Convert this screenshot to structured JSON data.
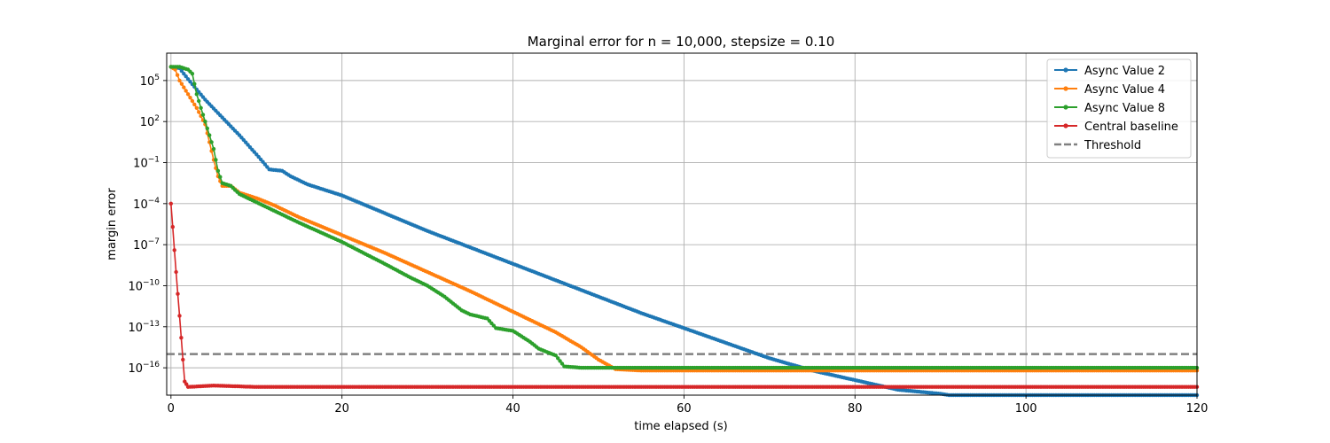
{
  "chart_data": {
    "type": "line",
    "title": "Marginal error for n = 10,000, stepsize = 0.10",
    "xlabel": "time elapsed (s)",
    "ylabel": "margin error",
    "xlim": [
      -0.5,
      120
    ],
    "ylim_log10": [
      -18,
      7
    ],
    "y_scale": "log",
    "grid": true,
    "legend_position": "top-right",
    "x_ticks": [
      0,
      20,
      40,
      60,
      80,
      100,
      120
    ],
    "x_tick_labels": [
      "0",
      "20",
      "40",
      "60",
      "80",
      "100",
      "120"
    ],
    "y_ticks_log10": [
      -16,
      -13,
      -10,
      -7,
      -4,
      -1,
      2,
      5
    ],
    "y_tick_labels": [
      {
        "base": "10",
        "exp": "−16"
      },
      {
        "base": "10",
        "exp": "−13"
      },
      {
        "base": "10",
        "exp": "−10"
      },
      {
        "base": "10",
        "exp": "−7"
      },
      {
        "base": "10",
        "exp": "−4"
      },
      {
        "base": "10",
        "exp": "−1"
      },
      {
        "base": "10",
        "exp": "2"
      },
      {
        "base": "10",
        "exp": "5"
      }
    ],
    "series": [
      {
        "name": "Async Value 2",
        "color": "#1f77b4",
        "marker": "dot",
        "points": [
          [
            0,
            6.0
          ],
          [
            1,
            5.9
          ],
          [
            2,
            5.1
          ],
          [
            4,
            3.6
          ],
          [
            6,
            2.3
          ],
          [
            8,
            1.0
          ],
          [
            10,
            -0.4
          ],
          [
            11.5,
            -1.5
          ],
          [
            13,
            -1.6
          ],
          [
            14,
            -2.0
          ],
          [
            16,
            -2.6
          ],
          [
            20,
            -3.4
          ],
          [
            25,
            -4.7
          ],
          [
            30,
            -6.0
          ],
          [
            35,
            -7.2
          ],
          [
            40,
            -8.4
          ],
          [
            45,
            -9.6
          ],
          [
            50,
            -10.8
          ],
          [
            55,
            -12.0
          ],
          [
            60,
            -13.1
          ],
          [
            65,
            -14.2
          ],
          [
            70,
            -15.3
          ],
          [
            75,
            -16.2
          ],
          [
            80,
            -16.9
          ],
          [
            85,
            -17.6
          ],
          [
            90,
            -17.9
          ],
          [
            91,
            -18.0
          ],
          [
            100,
            -18.0
          ],
          [
            120,
            -18.0
          ]
        ]
      },
      {
        "name": "Async Value 4",
        "color": "#ff7f0e",
        "marker": "dot",
        "points": [
          [
            0,
            6.0
          ],
          [
            0.5,
            5.8
          ],
          [
            1,
            5.0
          ],
          [
            2,
            4.0
          ],
          [
            3,
            3.0
          ],
          [
            4,
            1.8
          ],
          [
            5,
            -0.8
          ],
          [
            5.5,
            -2.0
          ],
          [
            6,
            -2.7
          ],
          [
            7,
            -2.7
          ],
          [
            8,
            -3.2
          ],
          [
            10,
            -3.6
          ],
          [
            12,
            -4.1
          ],
          [
            15,
            -5.0
          ],
          [
            20,
            -6.3
          ],
          [
            25,
            -7.6
          ],
          [
            30,
            -9.0
          ],
          [
            35,
            -10.4
          ],
          [
            40,
            -11.9
          ],
          [
            45,
            -13.4
          ],
          [
            48,
            -14.5
          ],
          [
            50,
            -15.4
          ],
          [
            52,
            -16.1
          ],
          [
            55,
            -16.2
          ],
          [
            60,
            -16.2
          ],
          [
            80,
            -16.2
          ],
          [
            100,
            -16.2
          ],
          [
            120,
            -16.2
          ]
        ]
      },
      {
        "name": "Async Value 8",
        "color": "#2ca02c",
        "marker": "dot",
        "points": [
          [
            0,
            6.0
          ],
          [
            1,
            6.0
          ],
          [
            2,
            5.8
          ],
          [
            2.5,
            5.5
          ],
          [
            3,
            4.0
          ],
          [
            4,
            2.0
          ],
          [
            5,
            0.0
          ],
          [
            5.5,
            -1.6
          ],
          [
            6,
            -2.5
          ],
          [
            7,
            -2.7
          ],
          [
            8,
            -3.3
          ],
          [
            10,
            -3.9
          ],
          [
            15,
            -5.4
          ],
          [
            20,
            -6.8
          ],
          [
            25,
            -8.4
          ],
          [
            28,
            -9.4
          ],
          [
            30,
            -10.0
          ],
          [
            32,
            -10.8
          ],
          [
            34,
            -11.8
          ],
          [
            35,
            -12.1
          ],
          [
            37,
            -12.4
          ],
          [
            38,
            -13.1
          ],
          [
            40,
            -13.3
          ],
          [
            42,
            -14.1
          ],
          [
            43,
            -14.6
          ],
          [
            45,
            -15.1
          ],
          [
            46,
            -15.9
          ],
          [
            48,
            -16.0
          ],
          [
            60,
            -16.0
          ],
          [
            80,
            -16.0
          ],
          [
            100,
            -16.0
          ],
          [
            120,
            -16.0
          ]
        ]
      },
      {
        "name": "Central baseline",
        "color": "#d62728",
        "marker": "dot",
        "points": [
          [
            0,
            -4.0
          ],
          [
            0.4,
            -7.4
          ],
          [
            0.8,
            -10.6
          ],
          [
            1.2,
            -13.8
          ],
          [
            1.6,
            -17.0
          ],
          [
            2,
            -17.4
          ],
          [
            5,
            -17.3
          ],
          [
            10,
            -17.4
          ],
          [
            20,
            -17.4
          ],
          [
            40,
            -17.4
          ],
          [
            60,
            -17.4
          ],
          [
            80,
            -17.4
          ],
          [
            100,
            -17.4
          ],
          [
            120,
            -17.4
          ]
        ]
      }
    ],
    "threshold": {
      "name": "Threshold",
      "color": "#808080",
      "style": "dashed",
      "value_log10": -15
    }
  }
}
